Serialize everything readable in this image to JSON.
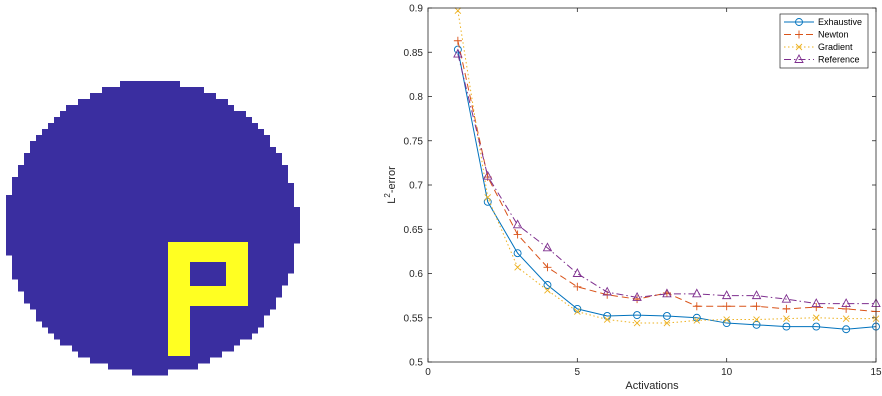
{
  "figure": {
    "disc_color": "#3a2ea0",
    "letter_color": "#ffff22",
    "letter": "P"
  },
  "chart_data": {
    "type": "line",
    "xlabel": "Activations",
    "ylabel_base": "L",
    "ylabel_sup": "2",
    "ylabel_rest": "-error",
    "xlim": [
      0,
      15
    ],
    "ylim": [
      0.5,
      0.9
    ],
    "xticks": [
      "0",
      "5",
      "10",
      "15"
    ],
    "yticks": [
      "0.5",
      "0.55",
      "0.6",
      "0.65",
      "0.7",
      "0.75",
      "0.8",
      "0.85",
      "0.9"
    ],
    "legend_position": "top-right",
    "x": [
      1,
      2,
      3,
      4,
      5,
      6,
      7,
      8,
      9,
      10,
      11,
      12,
      13,
      14,
      15
    ],
    "series": [
      {
        "name": "Exhaustive",
        "color": "#0072bd",
        "dash": "",
        "marker": "circle",
        "values": [
          0.853,
          0.681,
          0.623,
          0.587,
          0.56,
          0.552,
          0.553,
          0.552,
          0.55,
          0.544,
          0.542,
          0.54,
          0.54,
          0.537,
          0.54
        ]
      },
      {
        "name": "Newton",
        "color": "#d95319",
        "dash": "7,4",
        "marker": "plus",
        "values": [
          0.863,
          0.709,
          0.644,
          0.607,
          0.585,
          0.576,
          0.571,
          0.578,
          0.563,
          0.563,
          0.563,
          0.56,
          0.562,
          0.56,
          0.557
        ]
      },
      {
        "name": "Gradient",
        "color": "#edb120",
        "dash": "1.5,2.5",
        "marker": "x",
        "values": [
          0.897,
          0.686,
          0.607,
          0.581,
          0.557,
          0.548,
          0.544,
          0.544,
          0.547,
          0.548,
          0.548,
          0.549,
          0.55,
          0.549,
          0.549
        ]
      },
      {
        "name": "Reference",
        "color": "#7e2f8e",
        "dash": "7,3,1.5,3",
        "marker": "triangle",
        "values": [
          0.848,
          0.71,
          0.655,
          0.629,
          0.6,
          0.579,
          0.573,
          0.577,
          0.577,
          0.575,
          0.575,
          0.571,
          0.566,
          0.566,
          0.566
        ]
      }
    ]
  }
}
